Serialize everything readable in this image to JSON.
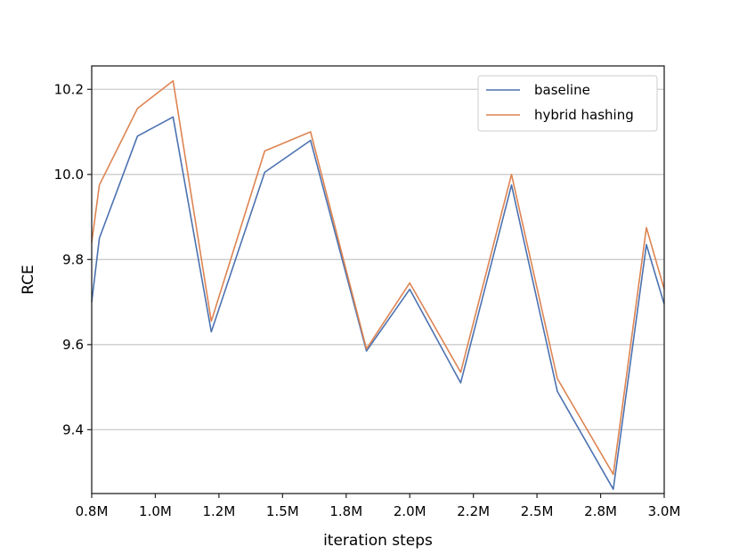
{
  "chart_data": {
    "type": "line",
    "title": "",
    "xlabel": "iteration steps",
    "ylabel": "RCE",
    "x_tick_labels": [
      "0.8M",
      "1.0M",
      "1.2M",
      "1.5M",
      "1.8M",
      "2.0M",
      "2.2M",
      "2.5M",
      "2.8M",
      "3.0M"
    ],
    "xlim": [
      0.75,
      3.0
    ],
    "ylim": [
      9.25,
      10.255
    ],
    "yticks": [
      9.4,
      9.6,
      9.8,
      10.0,
      10.2
    ],
    "y_tick_labels": [
      "9.4",
      "9.6",
      "9.8",
      "10.0",
      "10.2"
    ],
    "grid": "horizontal",
    "legend_position": "top-right",
    "series": [
      {
        "name": "baseline",
        "color": "#4c72b0",
        "x": [
          0.75,
          0.78,
          0.93,
          1.07,
          1.22,
          1.43,
          1.61,
          1.83,
          2.0,
          2.2,
          2.4,
          2.58,
          2.8,
          2.93,
          3.0
        ],
        "y": [
          9.7,
          9.85,
          10.09,
          10.135,
          9.63,
          10.005,
          10.08,
          9.585,
          9.73,
          9.51,
          9.975,
          9.49,
          9.26,
          9.835,
          9.695
        ]
      },
      {
        "name": "hybrid hashing",
        "color": "#dd8452",
        "x": [
          0.75,
          0.78,
          0.93,
          1.07,
          1.22,
          1.43,
          1.61,
          1.83,
          2.0,
          2.2,
          2.4,
          2.58,
          2.8,
          2.93,
          3.0
        ],
        "y": [
          9.84,
          9.975,
          10.155,
          10.22,
          9.655,
          10.055,
          10.1,
          9.59,
          9.745,
          9.535,
          10.0,
          9.52,
          9.295,
          9.875,
          9.73
        ]
      }
    ]
  }
}
